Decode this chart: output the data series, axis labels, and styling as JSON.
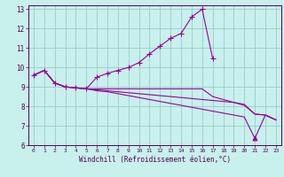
{
  "title": "",
  "xlabel": "Windchill (Refroidissement éolien,°C)",
  "bg_color": "#c8f0ec",
  "line_color": "#990099",
  "grid_color": "#99cccc",
  "xlim": [
    -0.5,
    23.5
  ],
  "ylim": [
    6,
    13.2
  ],
  "xticks": [
    0,
    1,
    2,
    3,
    4,
    5,
    6,
    7,
    8,
    9,
    10,
    11,
    12,
    13,
    14,
    15,
    16,
    17,
    18,
    19,
    20,
    21,
    22,
    23
  ],
  "yticks": [
    6,
    7,
    8,
    9,
    10,
    11,
    12,
    13
  ],
  "series": [
    {
      "x": [
        0,
        1,
        2,
        3,
        4,
        5,
        6,
        7,
        8,
        9,
        10,
        11,
        12,
        13,
        14,
        15,
        16,
        17,
        18,
        19,
        20,
        21,
        22,
        23
      ],
      "y": [
        9.6,
        9.85,
        9.2,
        9.0,
        8.95,
        8.9,
        9.5,
        9.7,
        9.85,
        10.0,
        10.25,
        10.7,
        11.1,
        11.5,
        11.75,
        12.6,
        13.0,
        10.45,
        null,
        null,
        null,
        null,
        null,
        null
      ],
      "marker": "+",
      "markersize": 4
    },
    {
      "x": [
        0,
        1,
        2,
        3,
        4,
        5,
        6,
        7,
        8,
        9,
        10,
        11,
        12,
        13,
        14,
        15,
        16,
        17,
        18,
        19,
        20,
        21,
        22,
        23
      ],
      "y": [
        9.6,
        9.85,
        9.2,
        9.0,
        8.95,
        8.9,
        8.9,
        8.9,
        8.9,
        8.9,
        8.9,
        8.9,
        8.9,
        8.9,
        8.9,
        8.9,
        8.9,
        8.5,
        8.35,
        8.2,
        8.05,
        7.6,
        7.55,
        7.3
      ],
      "marker": null
    },
    {
      "x": [
        0,
        1,
        2,
        3,
        4,
        5,
        6,
        7,
        8,
        9,
        10,
        11,
        12,
        13,
        14,
        15,
        16,
        17,
        18,
        19,
        20,
        21,
        22,
        23
      ],
      "y": [
        9.6,
        9.85,
        9.2,
        9.0,
        8.95,
        8.9,
        8.8,
        8.75,
        8.65,
        8.55,
        8.45,
        8.35,
        8.25,
        8.15,
        8.05,
        7.95,
        7.85,
        7.75,
        7.65,
        7.55,
        7.45,
        6.35,
        7.55,
        7.3
      ],
      "marker": "^",
      "marker_indices": [
        21
      ]
    },
    {
      "x": [
        0,
        1,
        2,
        3,
        4,
        5,
        6,
        7,
        8,
        9,
        10,
        11,
        12,
        13,
        14,
        15,
        16,
        17,
        18,
        19,
        20,
        21,
        22,
        23
      ],
      "y": [
        9.6,
        9.85,
        9.2,
        9.0,
        8.95,
        8.9,
        8.85,
        8.8,
        8.75,
        8.7,
        8.65,
        8.6,
        8.55,
        8.5,
        8.45,
        8.4,
        8.35,
        8.3,
        8.25,
        8.2,
        8.1,
        7.6,
        7.55,
        7.3
      ],
      "marker": null
    }
  ]
}
